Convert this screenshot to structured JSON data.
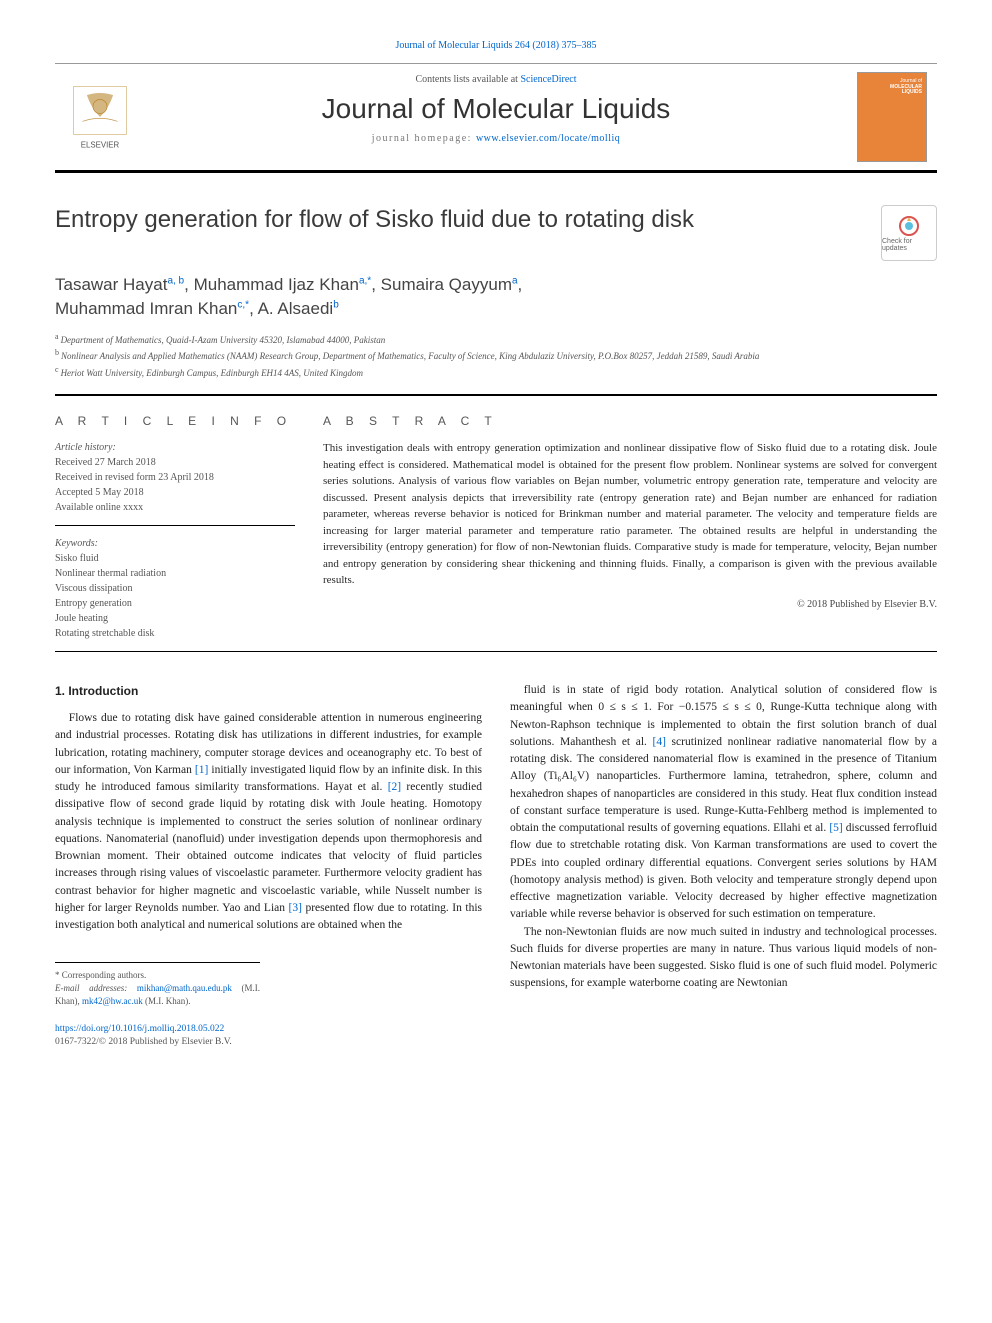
{
  "journal_ref": "Journal of Molecular Liquids 264 (2018) 375–385",
  "header": {
    "contents_prefix": "Contents lists available at ",
    "contents_link": "ScienceDirect",
    "journal_name": "Journal of Molecular Liquids",
    "homepage_prefix": "journal homepage: ",
    "homepage_url": "www.elsevier.com/locate/molliq",
    "cover_label_top": "Journal of",
    "cover_label_mid": "MOLECULAR",
    "cover_label_bot": "LIQUIDS",
    "elsevier_text": "ELSEVIER"
  },
  "updates_badge": "Check for updates",
  "title": "Entropy generation for flow of Sisko fluid due to rotating disk",
  "authors_html_parts": {
    "a1": "Tasawar Hayat",
    "a1_sup": "a, b",
    "a2": "Muhammad Ijaz Khan",
    "a2_sup": "a,",
    "a2_star": "*",
    "a3": "Sumaira Qayyum",
    "a3_sup": "a",
    "a4": "Muhammad Imran Khan",
    "a4_sup": "c,",
    "a4_star": "*",
    "a5": "A. Alsaedi",
    "a5_sup": "b"
  },
  "affiliations": {
    "a": "Department of Mathematics, Quaid-I-Azam University 45320, Islamabad 44000, Pakistan",
    "b": "Nonlinear Analysis and Applied Mathematics (NAAM) Research Group, Department of Mathematics, Faculty of Science, King Abdulaziz University, P.O.Box 80257, Jeddah 21589, Saudi Arabia",
    "c": "Heriot Watt University, Edinburgh Campus, Edinburgh EH14 4AS, United Kingdom"
  },
  "info_head": "A R T I C L E   I N F O",
  "abs_head": "A B S T R A C T",
  "history": {
    "label": "Article history:",
    "received": "Received 27 March 2018",
    "revised": "Received in revised form 23 April 2018",
    "accepted": "Accepted 5 May 2018",
    "online": "Available online xxxx"
  },
  "keywords": {
    "label": "Keywords:",
    "items": [
      "Sisko fluid",
      "Nonlinear thermal radiation",
      "Viscous dissipation",
      "Entropy generation",
      "Joule heating",
      "Rotating stretchable disk"
    ]
  },
  "abstract": "This investigation deals with entropy generation optimization and nonlinear dissipative flow of Sisko fluid due to a rotating disk. Joule heating effect is considered. Mathematical model is obtained for the present flow problem. Nonlinear systems are solved for convergent series solutions. Analysis of various flow variables on Bejan number, volumetric entropy generation rate, temperature and velocity are discussed. Present analysis depicts that irreversibility rate (entropy generation rate) and Bejan number are enhanced for radiation parameter, whereas reverse behavior is noticed for Brinkman number and material parameter. The velocity and temperature fields are increasing for larger material parameter and temperature ratio parameter. The obtained results are helpful in understanding the irreversibility (entropy generation) for flow of non-Newtonian fluids. Comparative study is made for temperature, velocity, Bejan number and entropy generation by considering shear thickening and thinning fluids. Finally, a comparison is given with the previous available results.",
  "copyright": "© 2018 Published by Elsevier B.V.",
  "section1_head": "1. Introduction",
  "col1_para": "Flows due to rotating disk have gained considerable attention in numerous engineering and industrial processes. Rotating disk has utilizations in different industries, for example lubrication, rotating machinery, computer storage devices and oceanography etc. To best of our information, Von Karman [1] initially investigated liquid flow by an infinite disk. In this study he introduced famous similarity transformations. Hayat et al. [2] recently studied dissipative flow of second grade liquid by rotating disk with Joule heating. Homotopy analysis technique is implemented to construct the series solution of nonlinear ordinary equations. Nanomaterial (nanofluid) under investigation depends upon thermophoresis and Brownian moment. Their obtained outcome indicates that velocity of fluid particles increases through rising values of viscoelastic parameter. Furthermore velocity gradient has contrast behavior for higher magnetic and viscoelastic variable, while Nusselt number is higher for larger Reynolds number. Yao and Lian [3] presented flow due to rotating. In this investigation both analytical and numerical solutions are obtained when the",
  "col2_para1": "fluid is in state of rigid body rotation. Analytical solution of considered flow is meaningful when 0 ≤ s ≤ 1. For −0.1575 ≤ s ≤ 0, Runge-Kutta technique along with Newton-Raphson technique is implemented to obtain the first solution branch of dual solutions. Mahanthesh et al. [4] scrutinized nonlinear radiative nanomaterial flow by a rotating disk. The considered nanomaterial flow is examined in the presence of Titanium Alloy (Ti₆Al₆V) nanoparticles. Furthermore lamina, tetrahedron, sphere, column and hexahedron shapes of nanoparticles are considered in this study. Heat flux condition instead of constant surface temperature is used. Runge-Kutta-Fehlberg method is implemented to obtain the computational results of governing equations. Ellahi et al. [5] discussed ferrofluid flow due to stretchable rotating disk. Von Karman transformations are used to covert the PDEs into coupled ordinary differential equations. Convergent series solutions by HAM (homotopy analysis method) is given. Both velocity and temperature strongly depend upon effective magnetization variable. Velocity decreased by higher effective magnetization variable while reverse behavior is observed for such estimation on temperature.",
  "col2_para2": "The non-Newtonian fluids are now much suited in industry and technological processes. Such fluids for diverse properties are many in nature. Thus various liquid models of non-Newtonian materials have been suggested. Sisko fluid is one of such fluid model. Polymeric suspensions, for example waterborne coating are Newtonian",
  "footnotes": {
    "star": "* Corresponding authors.",
    "email_label": "E-mail addresses: ",
    "email1": "mikhan@math.qau.edu.pk",
    "email1_who": " (M.I. Khan), ",
    "email2": "mk42@hw.ac.uk",
    "email2_who": " (M.I. Khan)."
  },
  "doi": {
    "url": "https://doi.org/10.1016/j.molliq.2018.05.022",
    "issn_line": "0167-7322/© 2018 Published by Elsevier B.V."
  },
  "refs": {
    "r1": "[1]",
    "r2": "[2]",
    "r3": "[3]",
    "r4": "[4]",
    "r5": "[5]"
  },
  "colors": {
    "link": "#0066cc",
    "cover_bg": "#e8833a",
    "text": "#1a1a1a"
  }
}
